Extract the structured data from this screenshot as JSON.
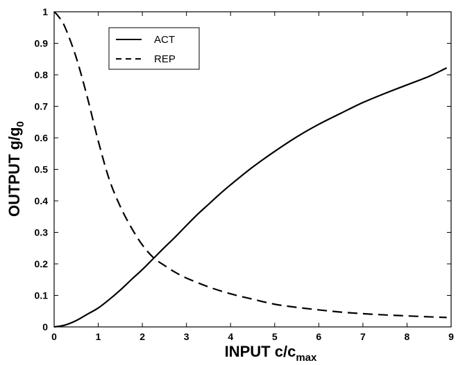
{
  "chart_data": {
    "type": "line",
    "xlabel_main": "INPUT c/c",
    "xlabel_sub": "max",
    "ylabel_main": "OUTPUT g/g",
    "ylabel_sub": "0",
    "xlim": [
      0,
      9
    ],
    "ylim": [
      0,
      1
    ],
    "x_ticks": [
      "0",
      "1",
      "2",
      "3",
      "4",
      "5",
      "6",
      "7",
      "8",
      "9"
    ],
    "y_ticks": [
      "0",
      "0.1",
      "0.2",
      "0.3",
      "0.4",
      "0.5",
      "0.6",
      "0.7",
      "0.8",
      "0.9",
      "1"
    ],
    "grid": false,
    "legend_position": "top-left",
    "series": [
      {
        "name": "ACT",
        "style": "solid",
        "x": [
          0,
          0.25,
          0.5,
          0.75,
          1,
          1.25,
          1.5,
          1.75,
          2,
          2.25,
          2.5,
          2.75,
          3,
          3.25,
          3.5,
          3.75,
          4,
          4.5,
          5,
          5.5,
          6,
          6.5,
          7,
          7.5,
          8,
          8.5,
          8.9
        ],
        "y": [
          0,
          0.006,
          0.02,
          0.04,
          0.06,
          0.087,
          0.117,
          0.15,
          0.182,
          0.217,
          0.252,
          0.286,
          0.322,
          0.357,
          0.389,
          0.421,
          0.451,
          0.507,
          0.557,
          0.603,
          0.643,
          0.678,
          0.712,
          0.741,
          0.768,
          0.795,
          0.822
        ]
      },
      {
        "name": "REP",
        "style": "dashed",
        "x": [
          0,
          0.1,
          0.25,
          0.5,
          0.75,
          1,
          1.25,
          1.5,
          1.75,
          2,
          2.25,
          2.5,
          2.75,
          3,
          3.5,
          4,
          4.5,
          5,
          5.5,
          6,
          6.5,
          7,
          7.5,
          8,
          8.5,
          8.9
        ],
        "y": [
          1,
          0.985,
          0.95,
          0.855,
          0.73,
          0.59,
          0.468,
          0.382,
          0.315,
          0.26,
          0.22,
          0.195,
          0.173,
          0.155,
          0.127,
          0.105,
          0.088,
          0.072,
          0.062,
          0.054,
          0.047,
          0.042,
          0.038,
          0.035,
          0.032,
          0.03
        ]
      }
    ]
  }
}
